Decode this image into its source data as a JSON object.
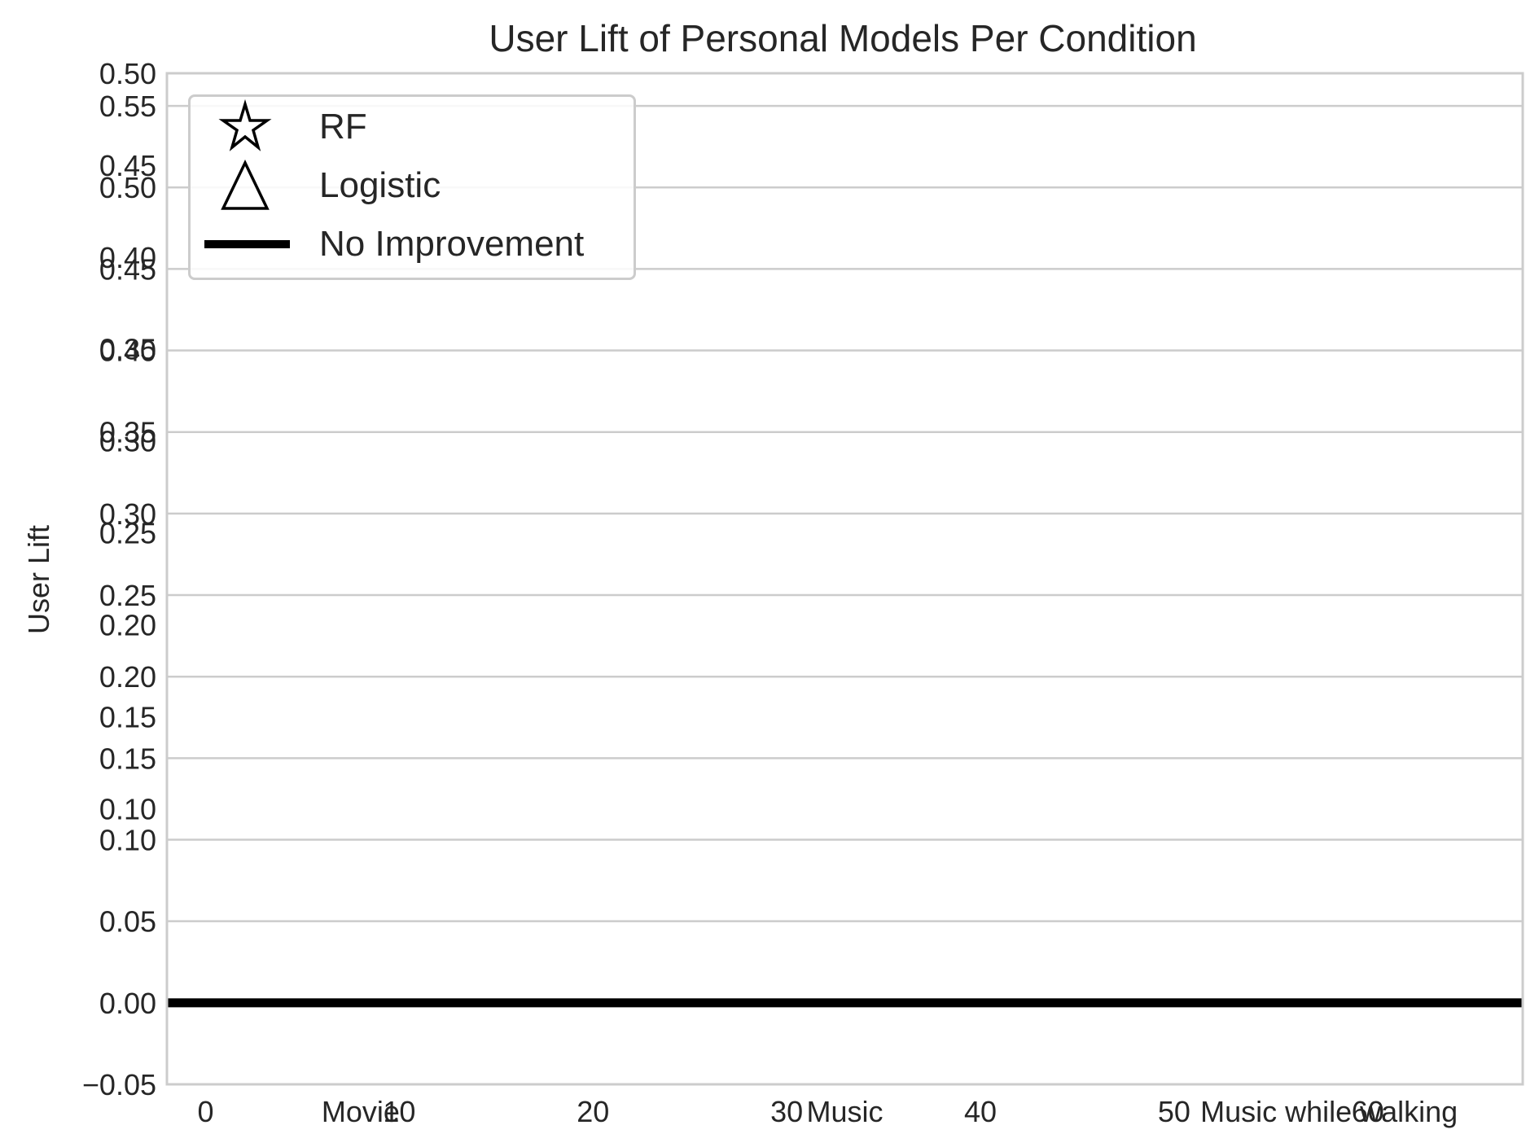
{
  "chart_data": {
    "type": "scatter",
    "title": "User Lift of Personal Models Per Condition",
    "ylabel": "User Lift",
    "xlabel": "",
    "grid": true,
    "legend_placement": "top-left",
    "legend": [
      {
        "label": "RF",
        "marker": "star-outline"
      },
      {
        "label": "Logistic",
        "marker": "triangle-outline"
      },
      {
        "label": "No Improvement",
        "marker": "thick-line"
      }
    ],
    "x_axis": {
      "range": [
        -2,
        68
      ],
      "numeric_ticks": [
        "0",
        "10",
        "20",
        "30",
        "40",
        "50",
        "60"
      ],
      "numeric_tick_values": [
        0,
        10,
        20,
        30,
        40,
        50,
        60
      ],
      "category_ticks": [
        "Movie",
        "Music",
        "Music while walking"
      ],
      "category_positions": [
        8,
        33,
        58
      ]
    },
    "y_axis_left_primary": {
      "range": [
        -0.05,
        0.57
      ],
      "ticks": [
        "0.00",
        "0.05",
        "0.10",
        "0.15",
        "0.20",
        "0.25",
        "0.30",
        "0.35",
        "0.40",
        "0.45",
        "0.50",
        "0.55"
      ],
      "tick_values": [
        0.0,
        0.05,
        0.1,
        0.15,
        0.2,
        0.25,
        0.3,
        0.35,
        0.4,
        0.45,
        0.5,
        0.55
      ]
    },
    "y_axis_left_overlay": {
      "range": [
        -0.05,
        0.5
      ],
      "ticks": [
        "−0.05",
        "0.10",
        "0.15",
        "0.20",
        "0.25",
        "0.30",
        "0.35",
        "0.40",
        "0.45",
        "0.50"
      ],
      "tick_values": [
        -0.05,
        0.1,
        0.15,
        0.2,
        0.25,
        0.3,
        0.35,
        0.4,
        0.45,
        0.5
      ]
    },
    "series": [
      {
        "name": "No Improvement",
        "kind": "hline",
        "y": 0.0,
        "color": "#000000"
      },
      {
        "name": "RF",
        "kind": "scatter",
        "points": []
      },
      {
        "name": "Logistic",
        "kind": "scatter",
        "points": []
      }
    ],
    "colors": {
      "grid": "#cccccc",
      "spine": "#cccccc",
      "text": "#262626",
      "line": "#000000"
    }
  }
}
